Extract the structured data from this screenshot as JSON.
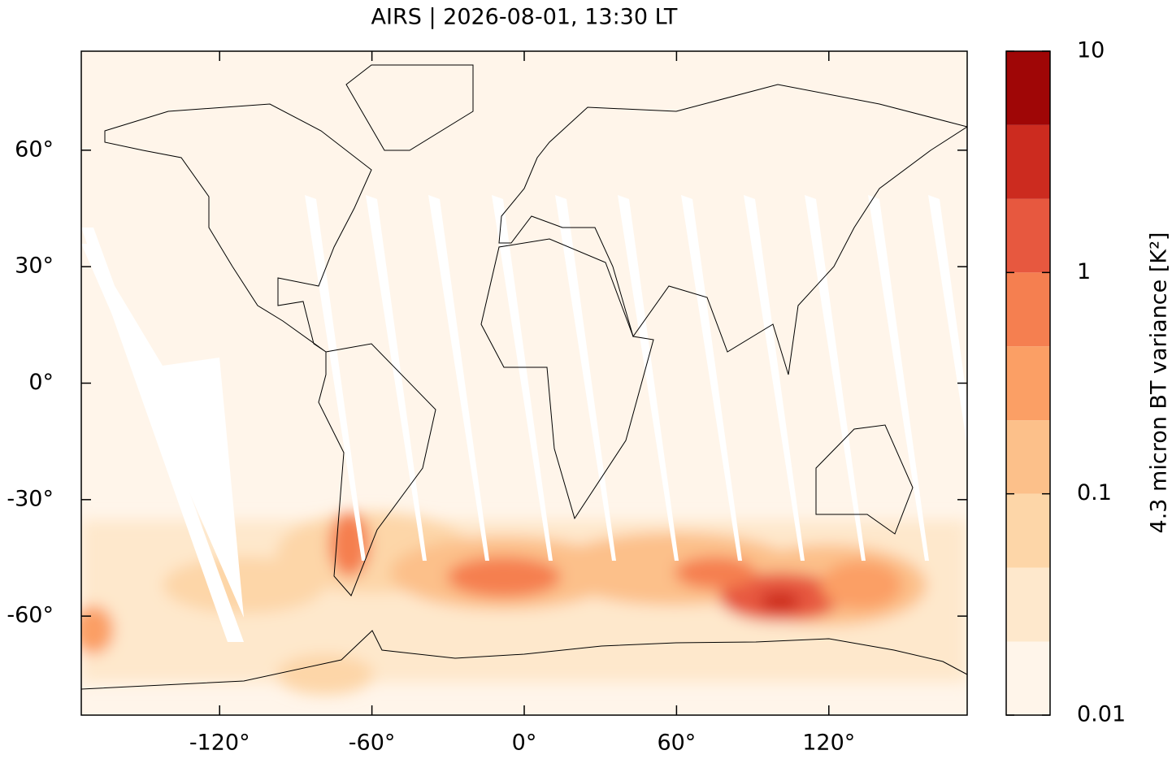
{
  "chart_data": {
    "type": "map",
    "title": "AIRS | 2026-08-01, 13:30 LT",
    "xlim": [
      -174.5,
      174.5
    ],
    "ylim": [
      -85.5,
      85.5
    ],
    "xticks": [
      {
        "value": -120,
        "label": "-120°"
      },
      {
        "value": -60,
        "label": "-60°"
      },
      {
        "value": 0,
        "label": "0°"
      },
      {
        "value": 60,
        "label": "60°"
      },
      {
        "value": 120,
        "label": "120°"
      }
    ],
    "yticks": [
      {
        "value": -60,
        "label": "-60°"
      },
      {
        "value": -30,
        "label": "-30°"
      },
      {
        "value": 0,
        "label": "0°"
      },
      {
        "value": 30,
        "label": "30°"
      },
      {
        "value": 60,
        "label": "60°"
      }
    ],
    "colorbar": {
      "label": "4.3 micron BT variance [K²]",
      "scale": "log",
      "lim": [
        0.01,
        10
      ],
      "ticks": [
        0.01,
        0.1,
        1,
        10
      ],
      "levels": [
        0.01,
        0.0215,
        0.0464,
        0.1,
        0.215,
        0.464,
        1,
        2.15,
        4.64,
        10
      ],
      "colors": [
        "#fff5ea",
        "#fee8cc",
        "#fdd6a8",
        "#fcc08a",
        "#fb9f65",
        "#f57f50",
        "#e7583f",
        "#cc2b1f",
        "#9f0606"
      ]
    }
  }
}
